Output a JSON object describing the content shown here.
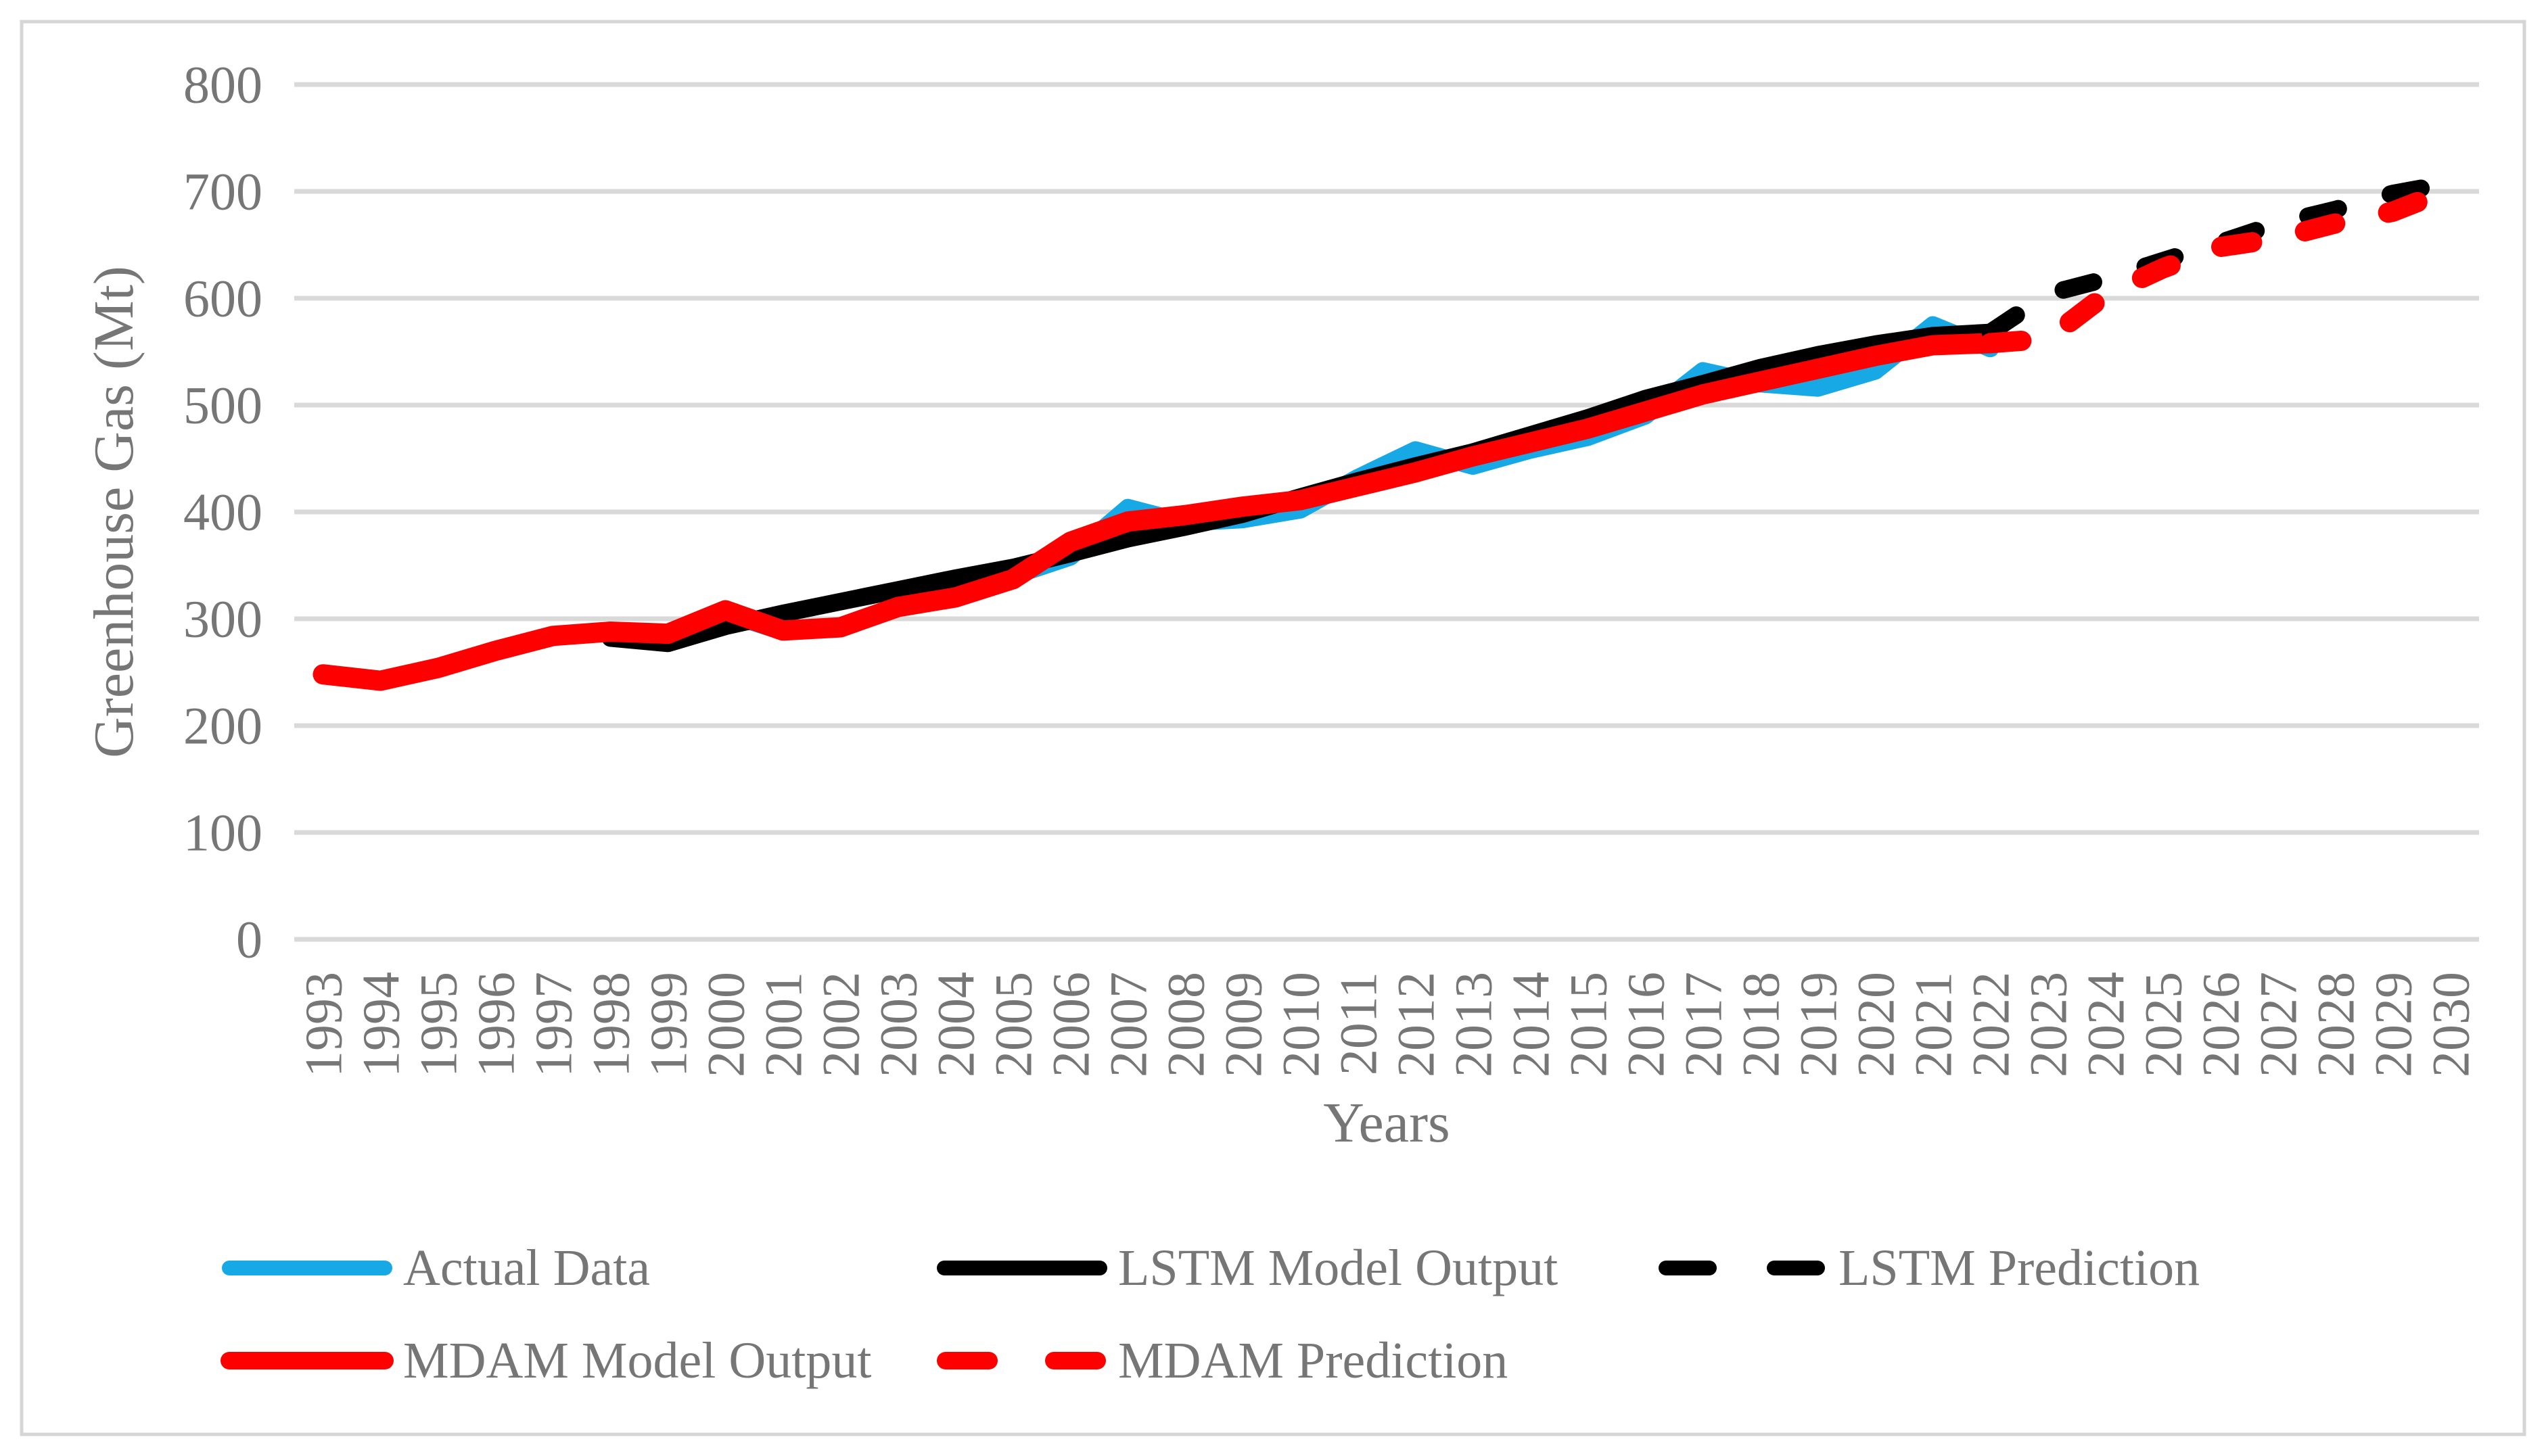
{
  "chart_data": {
    "type": "line",
    "title": "",
    "xlabel": "Years",
    "ylabel": "Greenhouse Gas (Mt)",
    "ylim": [
      0,
      800
    ],
    "yticks": [
      800,
      700,
      600,
      500,
      400,
      300,
      200,
      100,
      0
    ],
    "years": [
      1993,
      1994,
      1995,
      1996,
      1997,
      1998,
      1999,
      2000,
      2001,
      2002,
      2003,
      2004,
      2005,
      2006,
      2007,
      2008,
      2009,
      2010,
      2011,
      2012,
      2013,
      2014,
      2015,
      2016,
      2017,
      2018,
      2019,
      2020,
      2021,
      2022,
      2023,
      2024,
      2025,
      2026,
      2027,
      2028,
      2029,
      2030
    ],
    "grid": "horizontal-only",
    "legend_position": "bottom",
    "colors": {
      "background": "#FFFFFF",
      "frame_border": "#D5D5D5",
      "gridline": "#D9D9D9",
      "axis_text": "#767676",
      "actual": "#17A9E6",
      "lstm": "#000000",
      "mdam": "#FF0000"
    },
    "series": [
      {
        "name": "Actual Data",
        "color": "#17A9E6",
        "dashed": false,
        "start_year": 1993,
        "values": [
          248,
          242,
          254,
          270,
          284,
          288,
          283,
          305,
          288,
          291,
          313,
          326,
          340,
          358,
          404,
          390,
          393,
          402,
          432,
          458,
          443,
          458,
          470,
          490,
          532,
          520,
          516,
          532,
          575,
          553
        ]
      },
      {
        "name": "LSTM Model Output",
        "color": "#000000",
        "dashed": false,
        "start_year": 1998,
        "values": [
          282,
          277,
          293,
          305,
          316,
          327,
          338,
          348,
          361,
          375,
          386,
          398,
          414,
          429,
          443,
          456,
          472,
          488,
          506,
          520,
          535,
          547,
          557,
          565,
          568
        ]
      },
      {
        "name": "MDAM Model Output",
        "color": "#FF0000",
        "dashed": false,
        "start_year": 1993,
        "values": [
          248,
          242,
          254,
          270,
          284,
          288,
          286,
          308,
          289,
          292,
          311,
          320,
          337,
          372,
          391,
          397,
          405,
          411,
          424,
          437,
          452,
          465,
          478,
          494,
          510,
          522,
          534,
          546,
          556,
          558
        ]
      },
      {
        "name": "LSTM Prediction",
        "color": "#000000",
        "dashed": true,
        "start_year": 2022,
        "values": [
          568,
          604,
          618,
          635,
          652,
          670,
          683,
          698,
          708
        ]
      },
      {
        "name": "MDAM Prediction",
        "color": "#FF0000",
        "dashed": true,
        "start_year": 2022,
        "values": [
          558,
          562,
          603,
          628,
          648,
          656,
          670,
          681,
          702
        ]
      }
    ],
    "legend_rows": [
      [
        0,
        1,
        3
      ],
      [
        2,
        4
      ]
    ]
  }
}
